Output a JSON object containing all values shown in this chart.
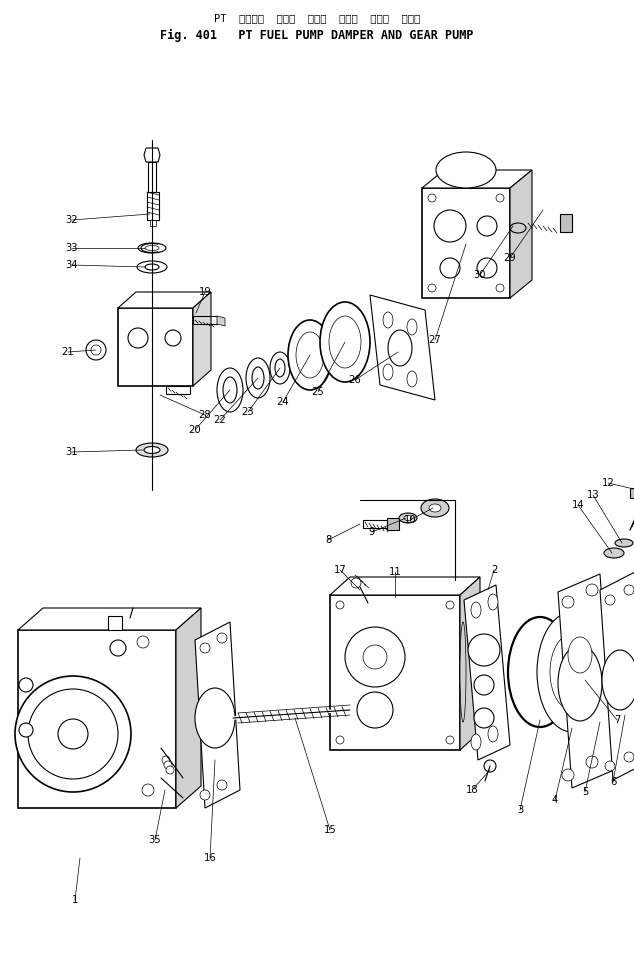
{
  "title_jp": "PT  フェエル  ポンプ  ダンパ  および  ギヤー  ポンプ",
  "title_en": "Fig. 401   PT FUEL PUMP DAMPER AND GEAR PUMP",
  "bg_color": "#ffffff",
  "fig_width": 6.34,
  "fig_height": 9.73,
  "dpi": 100
}
